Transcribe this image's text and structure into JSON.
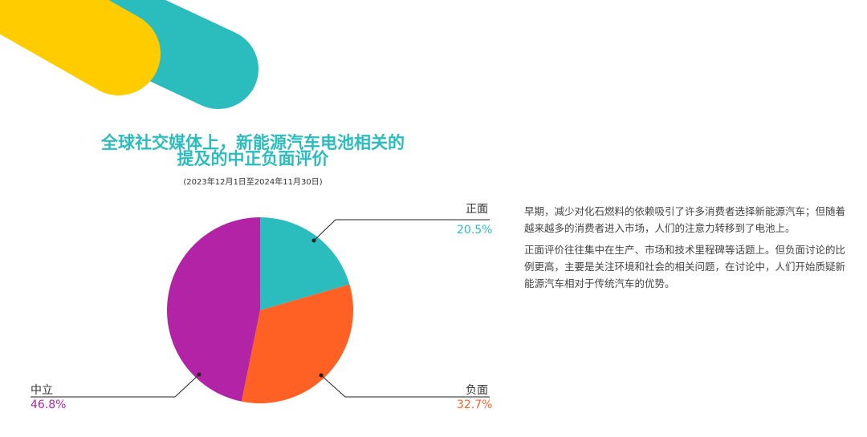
{
  "title_line1": "全球社交媒体上，新能源汽车电池相关的",
  "title_line2": "提及的中正负面评价",
  "subtitle": "(2023年12月1日至2024年11月30日)",
  "colors": {
    "positive": "#2bbdbd",
    "negative": "#ff6023",
    "neutral": "#b223a6",
    "yellow": "#ffcc00"
  },
  "chart_data": {
    "type": "pie",
    "title": "全球社交媒体上，新能源汽车电池相关的提及的中正负面评价",
    "subtitle": "(2023年12月1日至2024年11月30日)",
    "slices": [
      {
        "label": "正面",
        "value": 20.5,
        "value_label": "20.5%",
        "color": "#2bbdbd"
      },
      {
        "label": "负面",
        "value": 32.7,
        "value_label": "32.7%",
        "color": "#ff6023"
      },
      {
        "label": "中立",
        "value": 46.8,
        "value_label": "46.8%",
        "color": "#b223a6"
      }
    ]
  },
  "paragraphs": [
    "早期，减少对化石燃料的依赖吸引了许多消费者选择新能源汽车；但随着越来越多的消费者进入市场，人们的注意力转移到了电池上。",
    "正面评价往往集中在生产、市场和技术里程碑等话题上。但负面讨论的比例更高，主要是关注环境和社会的相关问题，在讨论中，人们开始质疑新能源汽车相对于传统汽车的优势。"
  ]
}
